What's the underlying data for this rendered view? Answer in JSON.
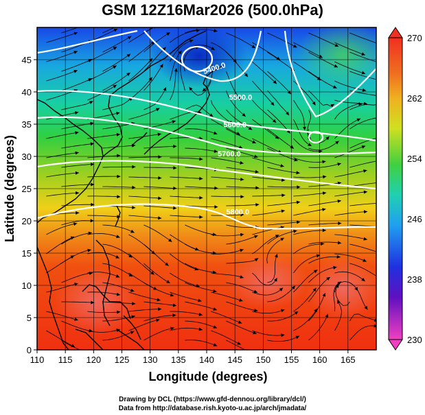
{
  "title": "GSM 12Z16Mar2026 (500.0hPa)",
  "x_axis": {
    "title": "Longitude (degrees)",
    "ticks": [
      "110",
      "115",
      "120",
      "125",
      "130",
      "135",
      "140",
      "145",
      "150",
      "155",
      "160",
      "165"
    ],
    "range": [
      110,
      170
    ]
  },
  "y_axis": {
    "title": "Latitude  (degrees)",
    "ticks": [
      "0",
      "5",
      "10",
      "15",
      "20",
      "25",
      "30",
      "35",
      "40",
      "45"
    ],
    "range": [
      0,
      50
    ]
  },
  "colorbar": {
    "labels": [
      "270",
      "262",
      "254",
      "246",
      "238",
      "230"
    ],
    "range": [
      230,
      270
    ]
  },
  "contours": [
    {
      "label": "5400.0",
      "lon": 141.5,
      "lat": 43.3
    },
    {
      "label": "5500.0",
      "lon": 146,
      "lat": 38.8
    },
    {
      "label": "5600.0",
      "lon": 145,
      "lat": 34.5
    },
    {
      "label": "5700.0",
      "lon": 144,
      "lat": 30
    },
    {
      "label": "5800.0",
      "lon": 145.5,
      "lat": 21
    }
  ],
  "credits": {
    "line1": "Drawing by DCL (https://www.gfd-dennou.org/library/dcl/)",
    "line2": "Data from http://database.rish.kyoto-u.ac.jp/arch/jmadata/"
  },
  "colors": {
    "cold": "#1030e0",
    "mid": "#20d030",
    "warm": "#f03010"
  }
}
